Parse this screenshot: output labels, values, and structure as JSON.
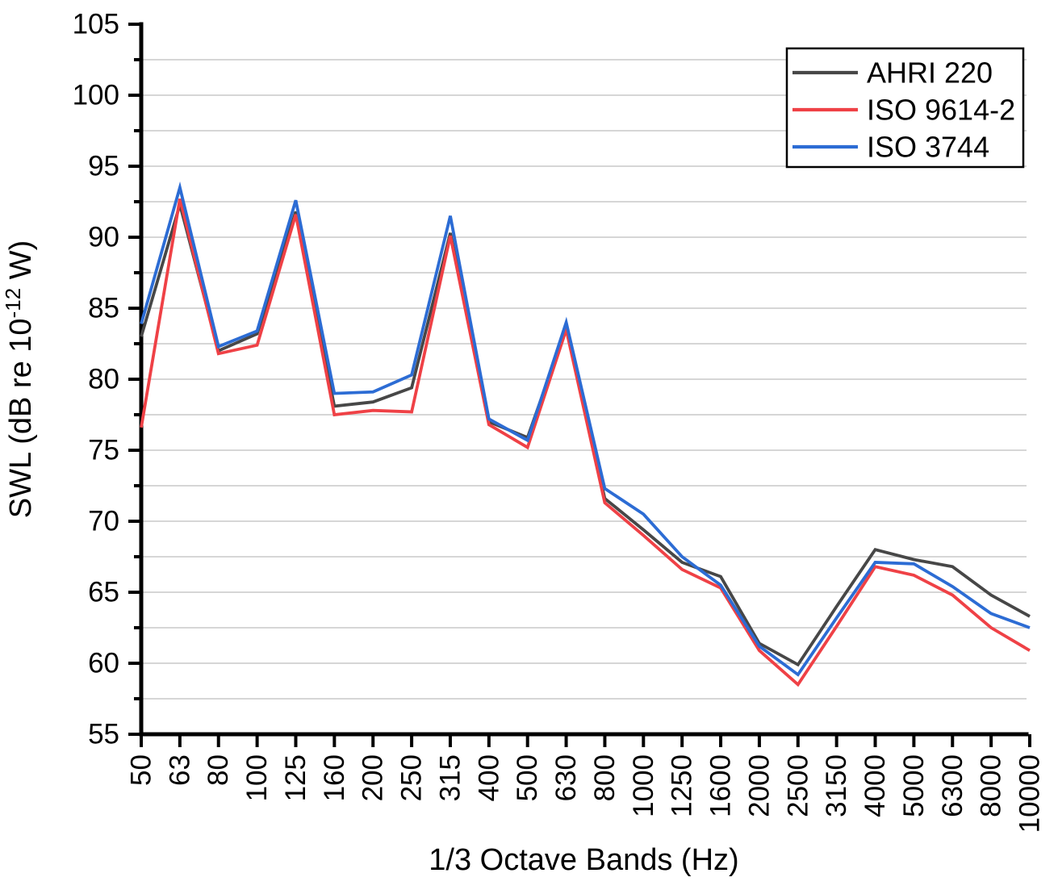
{
  "chart_data": {
    "type": "line",
    "title": "",
    "xlabel": "1/3 Octave Bands (Hz)",
    "ylabel": {
      "prefix": "SWL (dB re 10",
      "superscript": "-12",
      "suffix": " W)"
    },
    "ylim": [
      55,
      105
    ],
    "ytick_major_step": 5,
    "ytick_minor_step": 2.5,
    "grid": true,
    "grid_interval": 2.5,
    "legend_position": "top-right",
    "categories": [
      "50",
      "63",
      "80",
      "100",
      "125",
      "160",
      "200",
      "250",
      "315",
      "400",
      "500",
      "630",
      "800",
      "1000",
      "1250",
      "1600",
      "2000",
      "2500",
      "3150",
      "4000",
      "5000",
      "6300",
      "8000",
      "10000"
    ],
    "series": [
      {
        "name": "AHRI 220",
        "color": "#474747",
        "values": [
          83.0,
          92.3,
          82.0,
          83.2,
          91.8,
          78.1,
          78.4,
          79.4,
          90.3,
          77.0,
          75.9,
          83.6,
          71.6,
          69.4,
          67.1,
          66.1,
          61.4,
          59.9,
          64.0,
          68.0,
          67.3,
          66.8,
          64.8,
          63.3
        ]
      },
      {
        "name": "ISO 9614-2",
        "color": "#ef4146",
        "values": [
          76.6,
          92.7,
          81.8,
          82.4,
          91.6,
          77.5,
          77.8,
          77.7,
          90.1,
          76.8,
          75.2,
          83.5,
          71.3,
          69.0,
          66.6,
          65.3,
          60.9,
          58.5,
          62.6,
          66.8,
          66.2,
          64.8,
          62.5,
          60.9
        ]
      },
      {
        "name": "ISO 3744",
        "color": "#2c6cd4",
        "values": [
          83.9,
          93.5,
          82.3,
          83.4,
          92.6,
          79.0,
          79.1,
          80.3,
          91.5,
          77.2,
          75.7,
          84.0,
          72.3,
          70.5,
          67.5,
          65.5,
          61.2,
          59.2,
          63.2,
          67.1,
          67.0,
          65.4,
          63.5,
          62.5
        ]
      }
    ]
  }
}
